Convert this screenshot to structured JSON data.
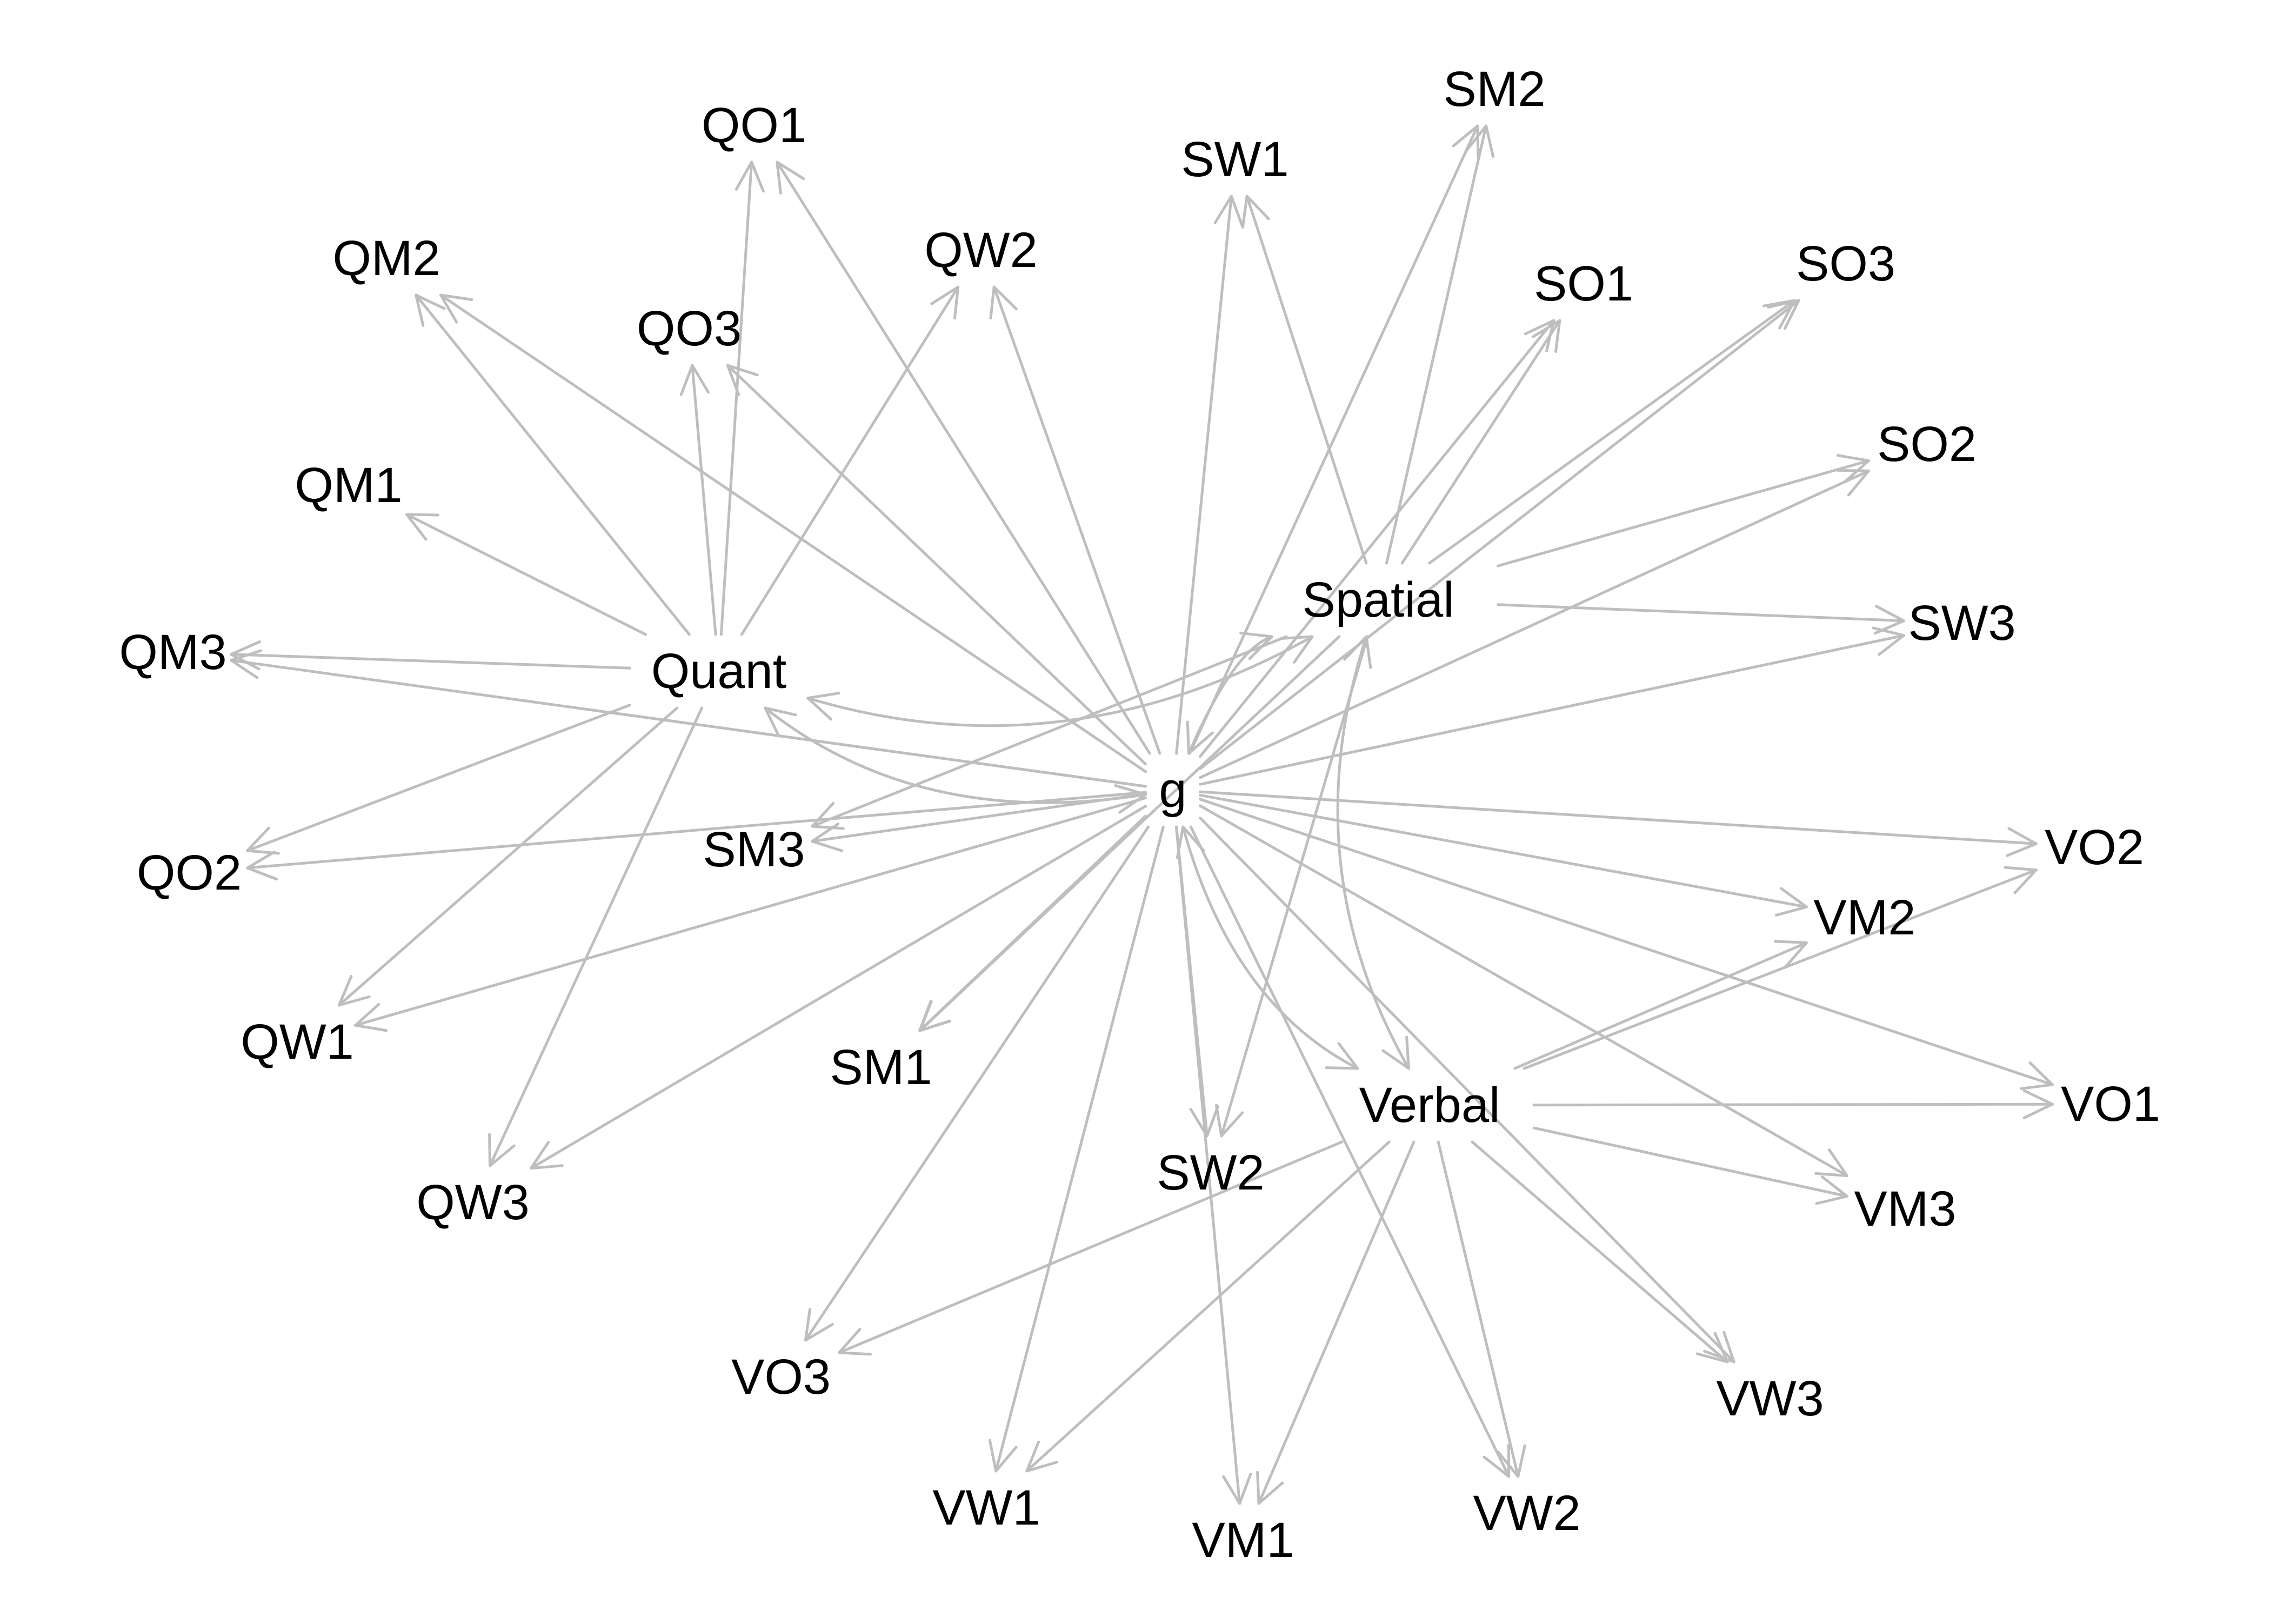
{
  "diagram": {
    "type": "directed-graph",
    "edge_color": "#bebebe",
    "label_color": "#000000",
    "nodes": [
      {
        "id": "g",
        "label": "g"
      },
      {
        "id": "Quant",
        "label": "Quant"
      },
      {
        "id": "Spatial",
        "label": "Spatial"
      },
      {
        "id": "Verbal",
        "label": "Verbal"
      },
      {
        "id": "QO1",
        "label": "QO1"
      },
      {
        "id": "QO2",
        "label": "QO2"
      },
      {
        "id": "QO3",
        "label": "QO3"
      },
      {
        "id": "QM1",
        "label": "QM1"
      },
      {
        "id": "QM2",
        "label": "QM2"
      },
      {
        "id": "QM3",
        "label": "QM3"
      },
      {
        "id": "QW1",
        "label": "QW1"
      },
      {
        "id": "QW2",
        "label": "QW2"
      },
      {
        "id": "QW3",
        "label": "QW3"
      },
      {
        "id": "SO1",
        "label": "SO1"
      },
      {
        "id": "SO2",
        "label": "SO2"
      },
      {
        "id": "SO3",
        "label": "SO3"
      },
      {
        "id": "SM1",
        "label": "SM1"
      },
      {
        "id": "SM2",
        "label": "SM2"
      },
      {
        "id": "SM3",
        "label": "SM3"
      },
      {
        "id": "SW1",
        "label": "SW1"
      },
      {
        "id": "SW2",
        "label": "SW2"
      },
      {
        "id": "SW3",
        "label": "SW3"
      },
      {
        "id": "VO1",
        "label": "VO1"
      },
      {
        "id": "VO2",
        "label": "VO2"
      },
      {
        "id": "VO3",
        "label": "VO3"
      },
      {
        "id": "VM1",
        "label": "VM1"
      },
      {
        "id": "VM2",
        "label": "VM2"
      },
      {
        "id": "VM3",
        "label": "VM3"
      },
      {
        "id": "VW1",
        "label": "VW1"
      },
      {
        "id": "VW2",
        "label": "VW2"
      },
      {
        "id": "VW3",
        "label": "VW3"
      }
    ],
    "edges": [
      {
        "from": "g",
        "to": "QO1"
      },
      {
        "from": "g",
        "to": "QO2"
      },
      {
        "from": "g",
        "to": "QO3"
      },
      {
        "from": "g",
        "to": "QM2"
      },
      {
        "from": "g",
        "to": "QM3"
      },
      {
        "from": "g",
        "to": "QW1"
      },
      {
        "from": "g",
        "to": "QW2"
      },
      {
        "from": "g",
        "to": "QW3"
      },
      {
        "from": "g",
        "to": "SO1"
      },
      {
        "from": "g",
        "to": "SO2"
      },
      {
        "from": "g",
        "to": "SO3"
      },
      {
        "from": "g",
        "to": "SM1"
      },
      {
        "from": "g",
        "to": "SM2"
      },
      {
        "from": "g",
        "to": "SM3"
      },
      {
        "from": "g",
        "to": "SW1"
      },
      {
        "from": "g",
        "to": "SW2"
      },
      {
        "from": "g",
        "to": "SW3"
      },
      {
        "from": "g",
        "to": "VO1"
      },
      {
        "from": "g",
        "to": "VO2"
      },
      {
        "from": "g",
        "to": "VO3"
      },
      {
        "from": "g",
        "to": "VM1"
      },
      {
        "from": "g",
        "to": "VM2"
      },
      {
        "from": "g",
        "to": "VM3"
      },
      {
        "from": "g",
        "to": "VW1"
      },
      {
        "from": "g",
        "to": "VW2"
      },
      {
        "from": "g",
        "to": "VW3"
      },
      {
        "from": "Quant",
        "to": "QO1"
      },
      {
        "from": "Quant",
        "to": "QO2"
      },
      {
        "from": "Quant",
        "to": "QO3"
      },
      {
        "from": "Quant",
        "to": "QM1"
      },
      {
        "from": "Quant",
        "to": "QM2"
      },
      {
        "from": "Quant",
        "to": "QM3"
      },
      {
        "from": "Quant",
        "to": "QW1"
      },
      {
        "from": "Quant",
        "to": "QW2"
      },
      {
        "from": "Quant",
        "to": "QW3"
      },
      {
        "from": "Spatial",
        "to": "SO1"
      },
      {
        "from": "Spatial",
        "to": "SO2"
      },
      {
        "from": "Spatial",
        "to": "SO3"
      },
      {
        "from": "Spatial",
        "to": "SM1"
      },
      {
        "from": "Spatial",
        "to": "SM2"
      },
      {
        "from": "Spatial",
        "to": "SM3"
      },
      {
        "from": "Spatial",
        "to": "SW1"
      },
      {
        "from": "Spatial",
        "to": "SW2"
      },
      {
        "from": "Spatial",
        "to": "SW3"
      },
      {
        "from": "Verbal",
        "to": "VO1"
      },
      {
        "from": "Verbal",
        "to": "VO2"
      },
      {
        "from": "Verbal",
        "to": "VO3"
      },
      {
        "from": "Verbal",
        "to": "VM1"
      },
      {
        "from": "Verbal",
        "to": "VM2"
      },
      {
        "from": "Verbal",
        "to": "VM3"
      },
      {
        "from": "Verbal",
        "to": "VW1"
      },
      {
        "from": "Verbal",
        "to": "VW2"
      },
      {
        "from": "Verbal",
        "to": "VW3"
      },
      {
        "from": "Quant",
        "to": "Spatial",
        "bidirectional": true
      },
      {
        "from": "Quant",
        "to": "g",
        "bidirectional": true
      },
      {
        "from": "Spatial",
        "to": "g",
        "bidirectional": true
      },
      {
        "from": "Spatial",
        "to": "Verbal",
        "bidirectional": true
      },
      {
        "from": "g",
        "to": "Verbal",
        "bidirectional": true
      }
    ]
  }
}
